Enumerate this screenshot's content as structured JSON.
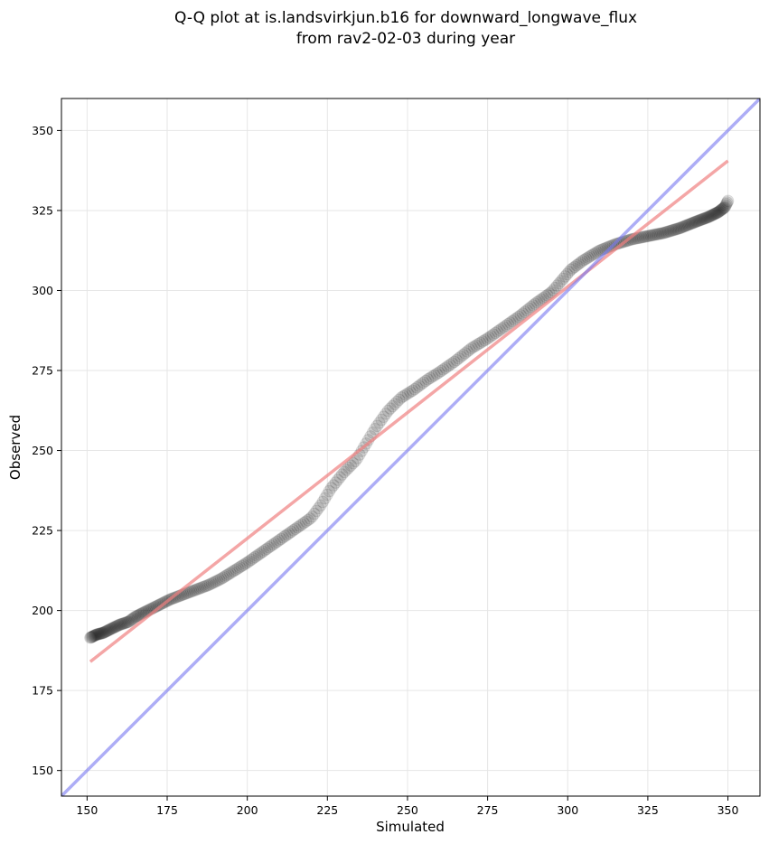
{
  "chart_data": {
    "type": "scatter",
    "title_lines": [
      "Q-Q plot at is.landsvirkjun.b16 for downward_longwave_flux",
      "from rav2-02-03 during year"
    ],
    "xlabel": "Simulated",
    "ylabel": "Observed",
    "xlim": [
      142,
      360
    ],
    "ylim": [
      142,
      360
    ],
    "xticks": [
      150,
      175,
      200,
      225,
      250,
      275,
      300,
      325,
      350
    ],
    "yticks": [
      150,
      175,
      200,
      225,
      250,
      275,
      300,
      325,
      350
    ],
    "grid": true,
    "series": [
      {
        "kind": "quantiles",
        "color": "#000000",
        "curve": [
          [
            151,
            191.5
          ],
          [
            153,
            192.5
          ],
          [
            155,
            193
          ],
          [
            158,
            194.5
          ],
          [
            160,
            195.5
          ],
          [
            163,
            196.5
          ],
          [
            165,
            198
          ],
          [
            168,
            199.5
          ],
          [
            170,
            200.5
          ],
          [
            173,
            202
          ],
          [
            176,
            203.5
          ],
          [
            180,
            205
          ],
          [
            184,
            206.5
          ],
          [
            188,
            208
          ],
          [
            192,
            210
          ],
          [
            196,
            212.5
          ],
          [
            200,
            215
          ],
          [
            205,
            218.5
          ],
          [
            210,
            222
          ],
          [
            215,
            225.5
          ],
          [
            220,
            229
          ],
          [
            223,
            233
          ],
          [
            226,
            238
          ],
          [
            230,
            243
          ],
          [
            234,
            247
          ],
          [
            237,
            252
          ],
          [
            240,
            257
          ],
          [
            244,
            262.5
          ],
          [
            248,
            266.5
          ],
          [
            252,
            269
          ],
          [
            256,
            272
          ],
          [
            260,
            274.5
          ],
          [
            265,
            278
          ],
          [
            270,
            282
          ],
          [
            275,
            285
          ],
          [
            280,
            288.5
          ],
          [
            285,
            292
          ],
          [
            290,
            296
          ],
          [
            295,
            299.5
          ],
          [
            298,
            303
          ],
          [
            301,
            306.5
          ],
          [
            305,
            309.5
          ],
          [
            310,
            312.5
          ],
          [
            315,
            314.5
          ],
          [
            320,
            316
          ],
          [
            325,
            317
          ],
          [
            330,
            318
          ],
          [
            335,
            319.5
          ],
          [
            340,
            321.5
          ],
          [
            344,
            323
          ],
          [
            347,
            324.5
          ],
          [
            349,
            326
          ],
          [
            350,
            328
          ]
        ]
      },
      {
        "kind": "fit-line",
        "color": "#f08080",
        "points": [
          [
            151,
            184
          ],
          [
            350,
            340.5
          ]
        ]
      },
      {
        "kind": "one-to-one-line",
        "color": "#7b7bf0",
        "points": [
          [
            142,
            142
          ],
          [
            360,
            360
          ]
        ]
      }
    ]
  }
}
